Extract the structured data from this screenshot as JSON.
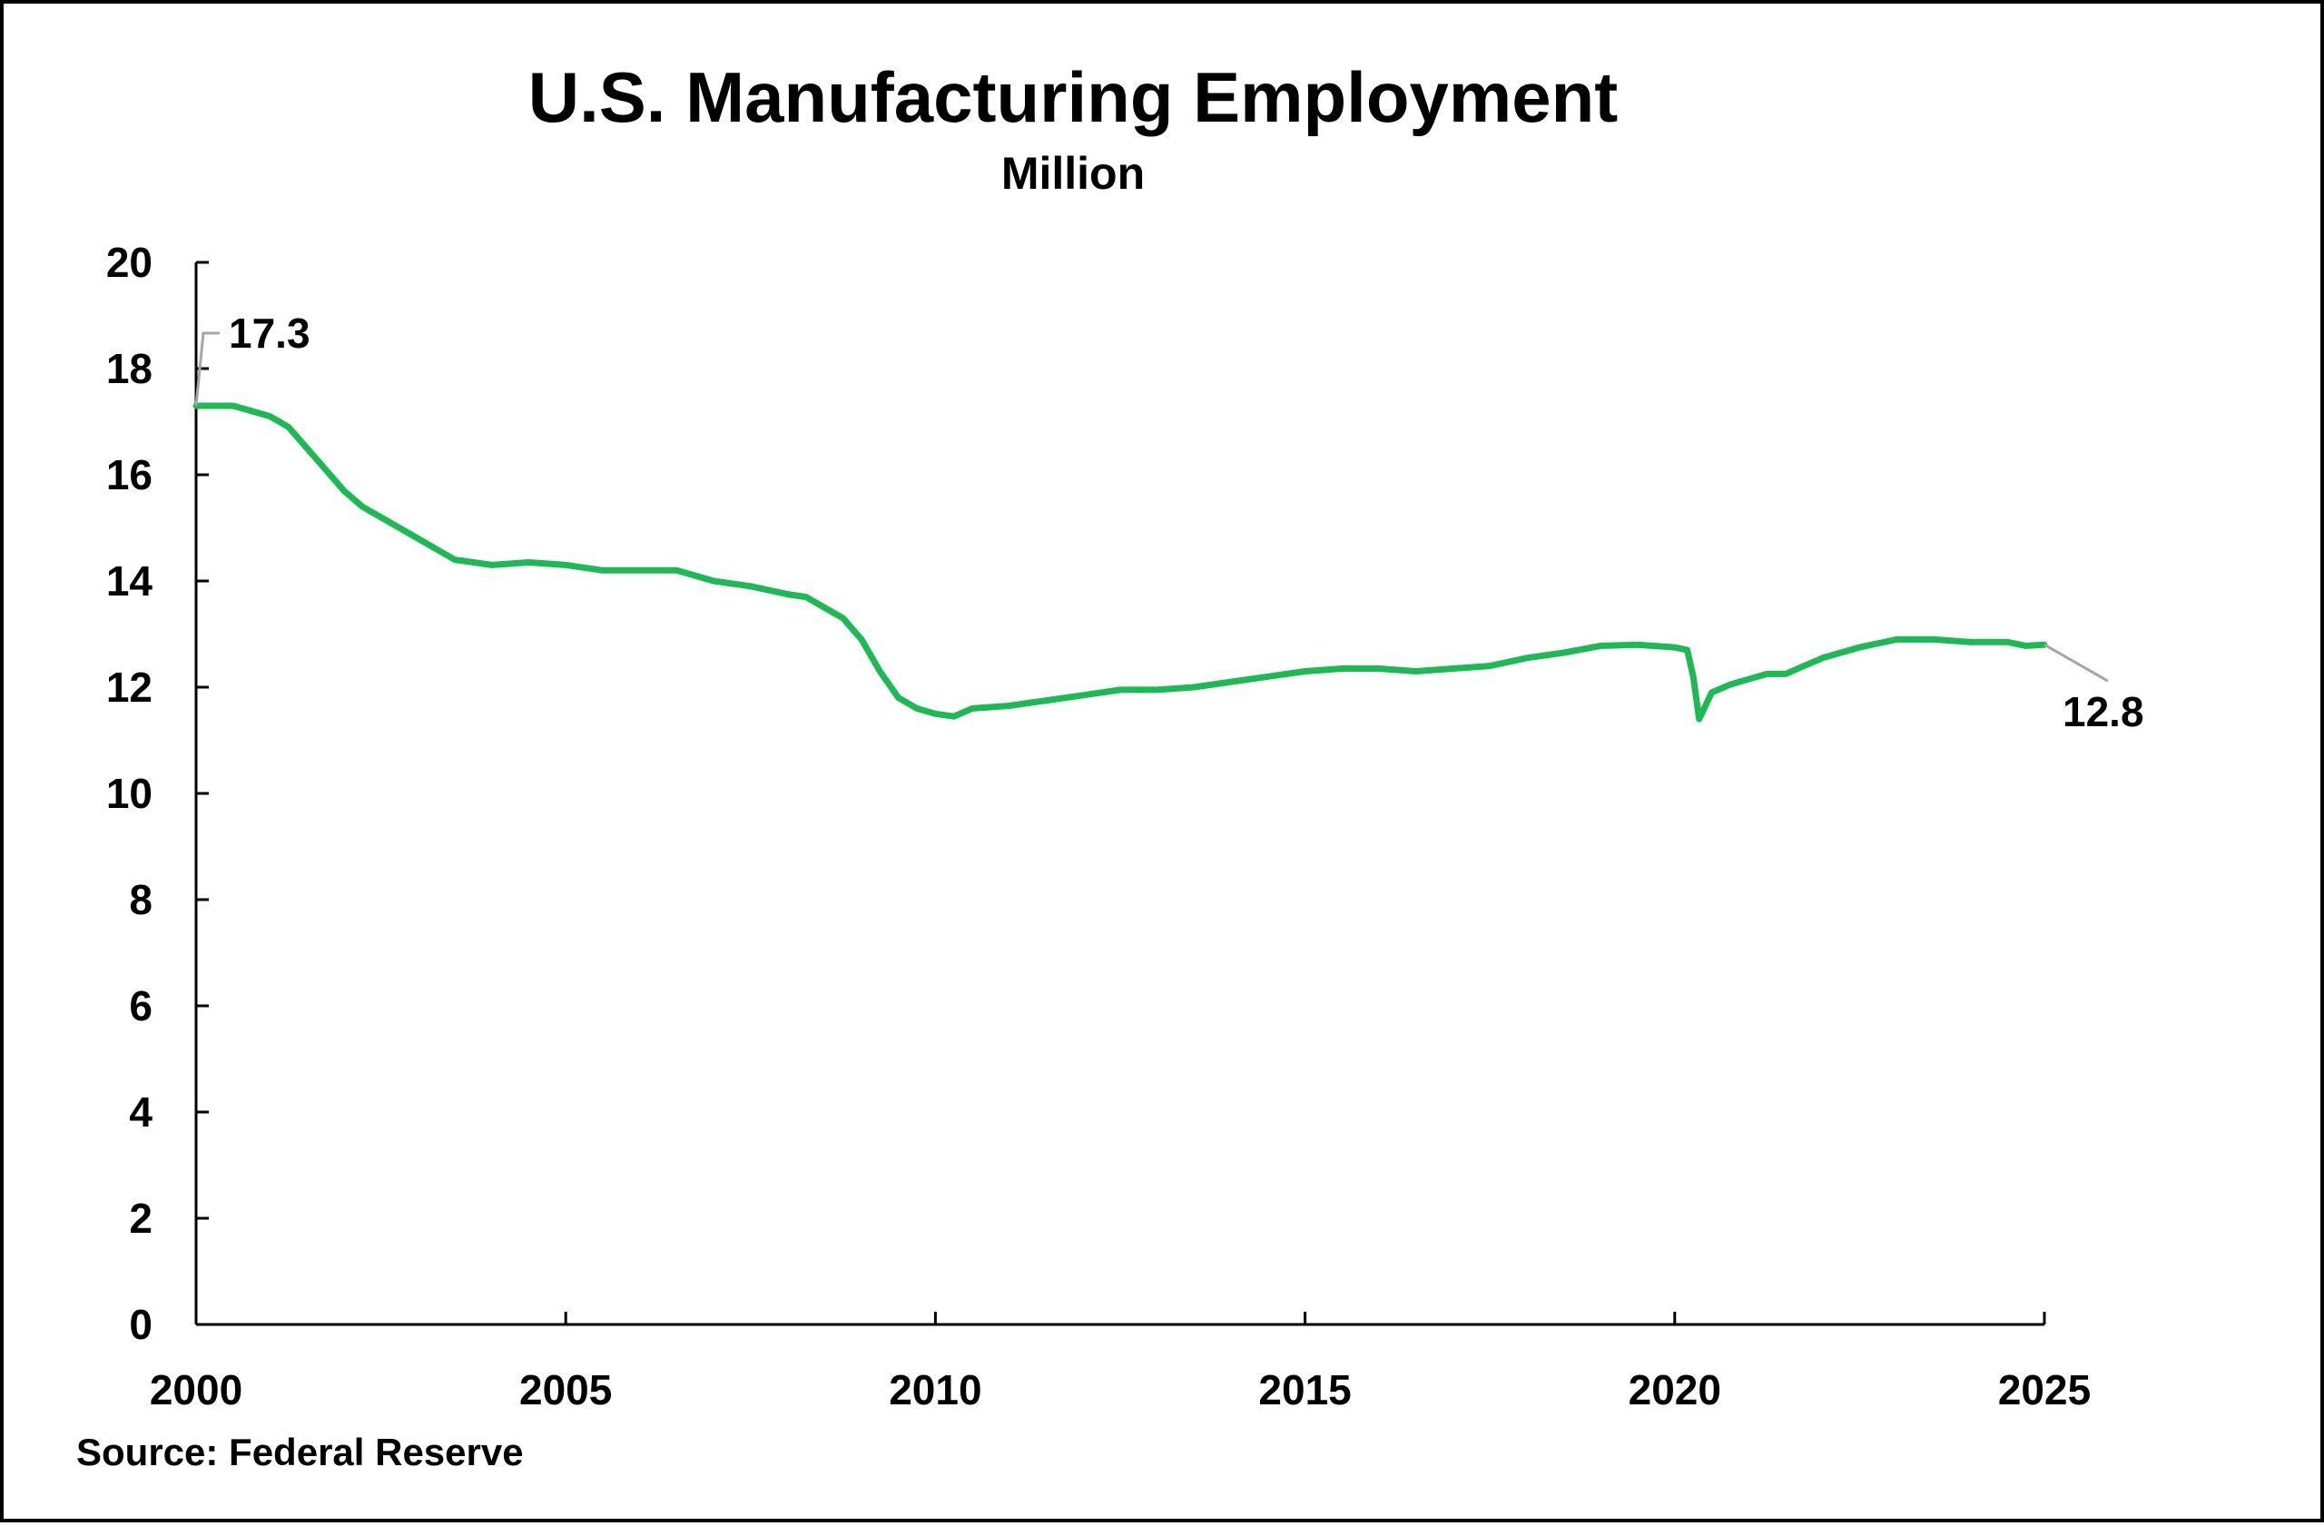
{
  "chart_data": {
    "type": "line",
    "title": "U.S. Manufacturing Employment",
    "subtitle": "Million",
    "source": "Source:  Federal Reserve",
    "xlim": [
      2000,
      2025
    ],
    "ylim": [
      0,
      20
    ],
    "xticks": [
      "2000",
      "2005",
      "2010",
      "2015",
      "2020",
      "2025"
    ],
    "yticks": [
      "0",
      "2",
      "4",
      "6",
      "8",
      "10",
      "12",
      "14",
      "16",
      "18",
      "20"
    ],
    "grid": false,
    "legend": "none",
    "line_color": "#1db954",
    "leader_color": "#a6a6a6",
    "series": [
      {
        "x": [
          2000.0,
          2000.25,
          2000.5,
          2000.75,
          2001.0,
          2001.25,
          2001.5,
          2001.75,
          2002.0,
          2002.25,
          2002.5,
          2002.75,
          2003.0,
          2003.25,
          2003.5,
          2004.0,
          2004.5,
          2005.0,
          2005.5,
          2006.0,
          2006.5,
          2007.0,
          2007.5,
          2008.0,
          2008.25,
          2008.5,
          2008.75,
          2009.0,
          2009.25,
          2009.5,
          2009.75,
          2010.0,
          2010.25,
          2010.5,
          2011.0,
          2011.5,
          2012.0,
          2012.5,
          2013.0,
          2013.5,
          2014.0,
          2014.5,
          2015.0,
          2015.5,
          2016.0,
          2016.5,
          2017.0,
          2017.5,
          2018.0,
          2018.5,
          2019.0,
          2019.5,
          2020.0,
          2020.17,
          2020.25,
          2020.33,
          2020.5,
          2020.75,
          2021.0,
          2021.25,
          2021.5,
          2021.75,
          2022.0,
          2022.5,
          2023.0,
          2023.5,
          2024.0,
          2024.5,
          2024.75,
          2025.0
        ],
        "y": [
          17.3,
          17.3,
          17.3,
          17.2,
          17.1,
          16.9,
          16.5,
          16.1,
          15.7,
          15.4,
          15.2,
          15.0,
          14.8,
          14.6,
          14.4,
          14.3,
          14.35,
          14.3,
          14.2,
          14.2,
          14.2,
          14.0,
          13.9,
          13.75,
          13.7,
          13.5,
          13.3,
          12.9,
          12.3,
          11.8,
          11.6,
          11.5,
          11.45,
          11.6,
          11.65,
          11.75,
          11.85,
          11.95,
          11.95,
          12.0,
          12.1,
          12.2,
          12.3,
          12.35,
          12.35,
          12.3,
          12.35,
          12.4,
          12.55,
          12.65,
          12.78,
          12.8,
          12.75,
          12.7,
          12.2,
          11.4,
          11.9,
          12.05,
          12.15,
          12.25,
          12.25,
          12.4,
          12.55,
          12.75,
          12.9,
          12.9,
          12.85,
          12.85,
          12.78,
          12.8
        ]
      }
    ],
    "annotations": [
      {
        "label": "17.3",
        "x": 2000.0,
        "y": 17.3
      },
      {
        "label": "12.8",
        "x": 2025.0,
        "y": 12.8
      }
    ]
  }
}
